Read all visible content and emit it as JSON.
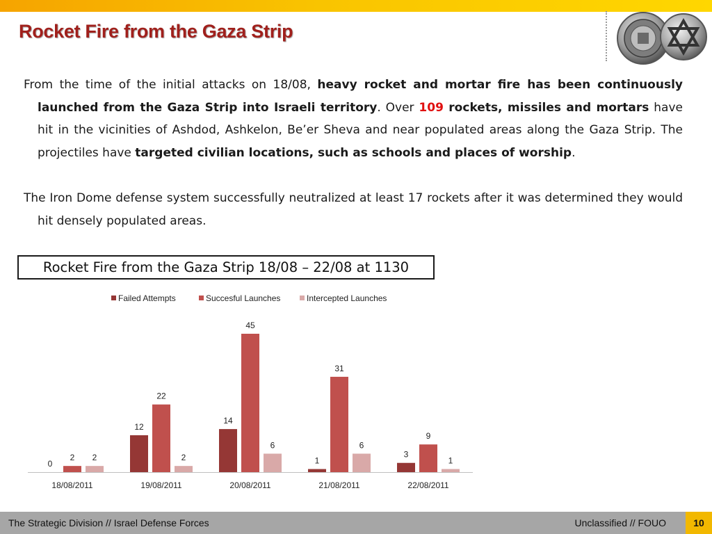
{
  "slide": {
    "title": "Rocket Fire from the Gaza Strip",
    "paragraph1": {
      "t1": "From the time of the initial attacks on 18/08, ",
      "b1": "heavy rocket and mortar fire has been continuously launched from the Gaza Strip into Israeli territory",
      "t2": ". Over ",
      "num": "109",
      "b2": " rockets, missiles and mortars",
      "t3": " have hit in the vicinities of Ashdod, Ashkelon, Be’er Sheva and near populated areas along the Gaza Strip. The projectiles have ",
      "b3": "targeted civilian locations, such as schools and places of worship",
      "t4": "."
    },
    "paragraph2": "The Iron Dome defense system successfully neutralized at least 17 rockets after it was determined they would hit densely populated areas.",
    "caption": "Rocket Fire from the Gaza Strip 18/08 – 22/08 at 1130"
  },
  "footer": {
    "left": "The Strategic Division // Israel Defense Forces",
    "right": "Unclassified // FOUO",
    "page": "10"
  },
  "colors": {
    "title": "#a0201c",
    "number_highlight": "#e01010",
    "top_bar": "#f9c400",
    "footer_bar": "#a6a6a6",
    "page_box": "#f2b800"
  },
  "chart_data": {
    "type": "bar",
    "title": "",
    "xlabel": "",
    "ylabel": "",
    "ylim": [
      0,
      45
    ],
    "grid": false,
    "legend": "top",
    "categories": [
      "18/08/2011",
      "19/08/2011",
      "20/08/2011",
      "21/08/2011",
      "22/08/2011"
    ],
    "series": [
      {
        "name": "Failed Attempts",
        "color": "#953735",
        "values": [
          0,
          12,
          14,
          1,
          3
        ]
      },
      {
        "name": "Succesful Launches",
        "color": "#c0504d",
        "values": [
          2,
          22,
          45,
          31,
          9
        ]
      },
      {
        "name": "Intercepted Launches",
        "color": "#d9a9a8",
        "values": [
          2,
          2,
          6,
          6,
          1
        ]
      }
    ]
  }
}
